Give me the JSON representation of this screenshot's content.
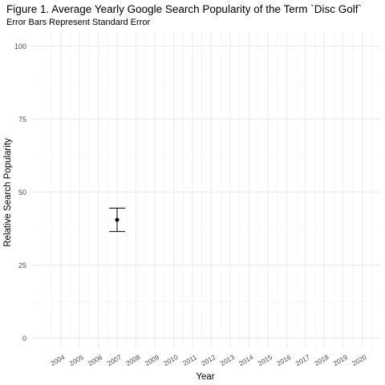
{
  "chart_data": {
    "type": "scatter",
    "title": "Figure 1. Average Yearly Google Search Popularity of the Term `Disc Golf`",
    "subtitle": "Error Bars Represent Standard Error",
    "xlabel": "Year",
    "ylabel": "Relative Search Popularity",
    "x_ticks": [
      "2004",
      "2005",
      "2006",
      "2007",
      "2008",
      "2009",
      "2010",
      "2011",
      "2012",
      "2013",
      "2014",
      "2015",
      "2016",
      "2017",
      "2018",
      "2019",
      "2020"
    ],
    "y_ticks": [
      0,
      25,
      50,
      75,
      100
    ],
    "ylim": [
      0,
      100
    ],
    "grid": true,
    "points": [
      {
        "x": "2007",
        "y": 40.5,
        "error_low": 36.5,
        "error_high": 44.5
      }
    ],
    "colors": {
      "point": "#000000",
      "grid": "#ebebeb",
      "tick_text": "#4d4d4d"
    }
  }
}
